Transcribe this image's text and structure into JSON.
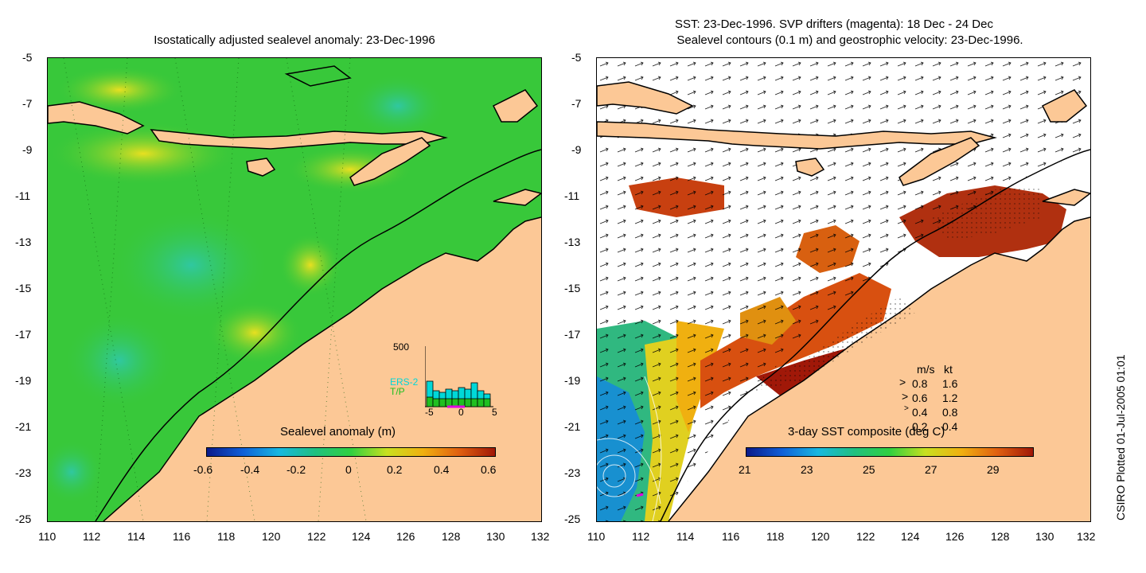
{
  "left_panel": {
    "title": "Isostatically adjusted sealevel anomaly: 23-Dec-1996",
    "colorbar": {
      "label": "Sealevel anomaly (m)",
      "ticks": [
        "-0.6",
        "-0.4",
        "-0.2",
        "0",
        "0.2",
        "0.4",
        "0.6"
      ],
      "colors": [
        "#0a1a8a",
        "#1060d8",
        "#18b8e0",
        "#20c080",
        "#30d040",
        "#c8e020",
        "#f0b010",
        "#e06010",
        "#a01808"
      ]
    },
    "inset": {
      "ymax_label": "500",
      "xticks": [
        "-5",
        "0",
        "5"
      ],
      "legend": [
        "ERS-2",
        "T/P"
      ],
      "legend_colors": [
        "#00d8d8",
        "#20c020"
      ]
    }
  },
  "right_panel": {
    "title_line1": "SST: 23-Dec-1996. SVP drifters (magenta): 18 Dec - 24 Dec",
    "title_line2": "Sealevel contours (0.1 m) and geostrophic velocity: 23-Dec-1996.",
    "colorbar": {
      "label": "3-day SST composite (deg C)",
      "ticks": [
        "21",
        "23",
        "25",
        "27",
        "29"
      ],
      "colors": [
        "#0a1a8a",
        "#1060d8",
        "#18b8e0",
        "#20c080",
        "#30d040",
        "#c8e020",
        "#f0b010",
        "#e06010",
        "#a01808"
      ]
    },
    "velocity_key": {
      "header_ms": "m/s",
      "header_kt": "kt",
      "rows": [
        {
          "ms": "0.8",
          "kt": "1.6"
        },
        {
          "ms": "0.6",
          "kt": "1.2"
        },
        {
          "ms": "0.4",
          "kt": "0.8"
        },
        {
          "ms": "0.2",
          "kt": "0.4"
        }
      ]
    }
  },
  "axes": {
    "y_ticks": [
      "-5",
      "-7",
      "-9",
      "-11",
      "-13",
      "-15",
      "-17",
      "-19",
      "-21",
      "-23",
      "-25"
    ],
    "x_ticks": [
      "110",
      "112",
      "114",
      "116",
      "118",
      "120",
      "122",
      "124",
      "126",
      "128",
      "130",
      "132"
    ]
  },
  "credit": "CSIRO Plotted 01-Jul-2005 01:01",
  "colors": {
    "land": "#fcc896",
    "ocean_green": "#38c83a",
    "ocean_teal": "#30c8a0",
    "ocean_yellow": "#d8e828",
    "sst_dark": "#a01808",
    "sst_orange": "#e07010",
    "coast": "#000000"
  }
}
